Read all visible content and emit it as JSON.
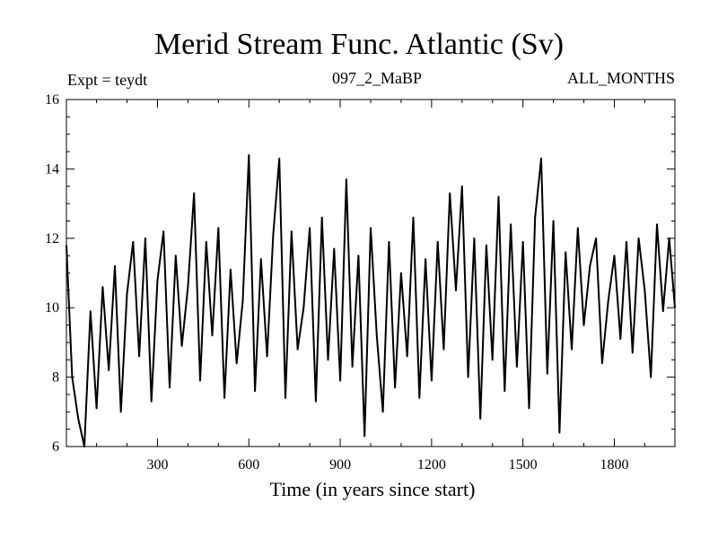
{
  "chart_data": {
    "type": "line",
    "title": "Merid Stream Func. Atlantic (Sv)",
    "header_left": "Expt = teydt",
    "header_center": "097_2_MaBP",
    "header_right": "ALL_MONTHS",
    "xlabel": "Time (in years since start)",
    "ylabel": "",
    "xlim": [
      1,
      1999
    ],
    "ylim": [
      6,
      16
    ],
    "xticks": [
      300,
      600,
      900,
      1200,
      1500,
      1800
    ],
    "yticks": [
      6,
      8,
      10,
      12,
      14,
      16
    ],
    "grid": false,
    "line_color": "#000000",
    "series": [
      {
        "x": [
          1,
          20,
          40,
          60,
          80,
          100,
          120,
          140,
          160,
          180,
          200,
          220,
          240,
          260,
          280,
          300,
          320,
          340,
          360,
          380,
          400,
          420,
          440,
          460,
          480,
          500,
          520,
          540,
          560,
          580,
          600,
          620,
          640,
          660,
          680,
          700,
          720,
          740,
          760,
          780,
          800,
          820,
          840,
          860,
          880,
          900,
          920,
          940,
          960,
          980,
          1000,
          1020,
          1040,
          1060,
          1080,
          1100,
          1120,
          1140,
          1160,
          1180,
          1200,
          1220,
          1240,
          1260,
          1280,
          1300,
          1320,
          1340,
          1360,
          1380,
          1400,
          1420,
          1440,
          1460,
          1480,
          1500,
          1520,
          1540,
          1560,
          1580,
          1600,
          1620,
          1640,
          1660,
          1680,
          1700,
          1720,
          1740,
          1760,
          1780,
          1800,
          1820,
          1840,
          1860,
          1880,
          1900,
          1920,
          1940,
          1960,
          1980,
          1999
        ],
        "values": [
          11.8,
          8.0,
          6.8,
          6.0,
          9.9,
          7.1,
          10.6,
          8.2,
          11.2,
          7.0,
          10.4,
          11.9,
          8.6,
          12.0,
          7.3,
          10.8,
          12.2,
          7.7,
          11.5,
          8.9,
          10.6,
          13.3,
          7.9,
          11.9,
          9.2,
          12.3,
          7.4,
          11.1,
          8.4,
          10.2,
          14.4,
          7.6,
          11.4,
          8.6,
          12.1,
          14.3,
          7.4,
          12.2,
          8.8,
          10.0,
          12.3,
          7.3,
          12.6,
          8.5,
          11.7,
          7.9,
          13.7,
          8.3,
          11.5,
          6.3,
          12.3,
          9.2,
          7.0,
          11.9,
          7.7,
          11.0,
          8.6,
          12.6,
          7.4,
          11.4,
          7.9,
          11.9,
          8.8,
          13.3,
          10.5,
          13.5,
          8.0,
          12.0,
          6.8,
          11.8,
          8.5,
          13.2,
          7.6,
          12.4,
          8.3,
          11.9,
          7.1,
          12.6,
          14.3,
          8.1,
          12.5,
          6.4,
          11.6,
          8.8,
          12.3,
          9.5,
          11.2,
          12.0,
          8.4,
          10.2,
          11.5,
          9.1,
          11.9,
          8.7,
          12.0,
          10.5,
          8.0,
          12.4,
          9.9,
          12.0,
          10.0
        ]
      }
    ]
  }
}
